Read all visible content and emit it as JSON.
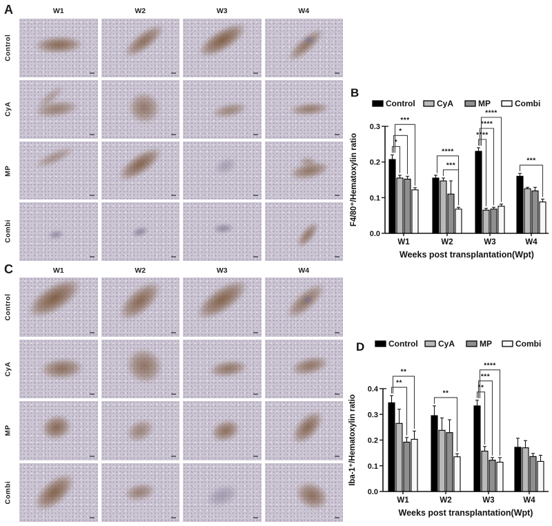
{
  "figure": {
    "background": "#ffffff"
  },
  "panels": [
    {
      "label": "A",
      "columns": [
        "W1",
        "W2",
        "W3",
        "W4"
      ],
      "rows": [
        "Control",
        "CyA",
        "MP",
        "Combi"
      ]
    },
    {
      "label": "C",
      "columns": [
        "W1",
        "W2",
        "W3",
        "W4"
      ],
      "rows": [
        "Control",
        "CyA",
        "MP",
        "Combi"
      ]
    }
  ],
  "legend": {
    "items": [
      {
        "label": "Control",
        "color": "#000000"
      },
      {
        "label": "CyA",
        "color": "#b9b9b9"
      },
      {
        "label": "MP",
        "color": "#8f8f8f"
      },
      {
        "label": "Combi",
        "color": "#f7f7f7"
      }
    ]
  },
  "chart_data": [
    {
      "type": "bar",
      "panel": "B",
      "title": "",
      "xlabel": "Weeks post transplantation(Wpt)",
      "ylabel": "F4/80⁺/Hematoxylin ratio",
      "categories": [
        "W1",
        "W2",
        "W3",
        "W4"
      ],
      "ylim": [
        0,
        0.3
      ],
      "yticks": [
        "0.0",
        "0.1",
        "0.2",
        "0.3"
      ],
      "grid": false,
      "legend_position": "top",
      "series": [
        {
          "name": "Control",
          "color": "#000000",
          "values": [
            0.207,
            0.155,
            0.23,
            0.16
          ],
          "errors": [
            0.013,
            0.008,
            0.01,
            0.008
          ]
        },
        {
          "name": "CyA",
          "color": "#b9b9b9",
          "values": [
            0.155,
            0.147,
            0.065,
            0.125
          ],
          "errors": [
            0.008,
            0.008,
            0.005,
            0.004
          ]
        },
        {
          "name": "MP",
          "color": "#8f8f8f",
          "values": [
            0.152,
            0.11,
            0.068,
            0.119
          ],
          "errors": [
            0.008,
            0.037,
            0.005,
            0.01
          ]
        },
        {
          "name": "Combi",
          "color": "#f7f7f7",
          "values": [
            0.122,
            0.068,
            0.076,
            0.088
          ],
          "errors": [
            0.006,
            0.005,
            0.006,
            0.008
          ]
        }
      ],
      "significance": [
        {
          "group": "W1",
          "from": "Control",
          "to": "CyA",
          "label": "*"
        },
        {
          "group": "W1",
          "from": "Control",
          "to": "MP",
          "label": "*"
        },
        {
          "group": "W1",
          "from": "Control",
          "to": "Combi",
          "label": "***"
        },
        {
          "group": "W2",
          "from": "CyA",
          "to": "Combi",
          "label": "***"
        },
        {
          "group": "W2",
          "from": "Control",
          "to": "Combi",
          "label": "****"
        },
        {
          "group": "W3",
          "from": "Control",
          "to": "CyA",
          "label": "****"
        },
        {
          "group": "W3",
          "from": "Control",
          "to": "MP",
          "label": "****"
        },
        {
          "group": "W3",
          "from": "Control",
          "to": "Combi",
          "label": "****"
        },
        {
          "group": "W4",
          "from": "Control",
          "to": "Combi",
          "label": "***"
        }
      ]
    },
    {
      "type": "bar",
      "panel": "D",
      "title": "",
      "xlabel": "Weeks post transplantation(Wpt)",
      "ylabel": "Iba-1⁺/Hematoxylin ratio",
      "categories": [
        "W1",
        "W2",
        "W3",
        "W4"
      ],
      "ylim": [
        0,
        0.4
      ],
      "yticks": [
        "0.0",
        "0.1",
        "0.2",
        "0.3",
        "0.4"
      ],
      "grid": false,
      "legend_position": "top",
      "series": [
        {
          "name": "Control",
          "color": "#000000",
          "values": [
            0.345,
            0.295,
            0.333,
            0.172
          ],
          "errors": [
            0.028,
            0.038,
            0.022,
            0.035
          ]
        },
        {
          "name": "CyA",
          "color": "#b9b9b9",
          "values": [
            0.265,
            0.238,
            0.157,
            0.17
          ],
          "errors": [
            0.055,
            0.048,
            0.018,
            0.028
          ]
        },
        {
          "name": "MP",
          "color": "#8f8f8f",
          "values": [
            0.192,
            0.229,
            0.122,
            0.136
          ],
          "errors": [
            0.018,
            0.05,
            0.01,
            0.012
          ]
        },
        {
          "name": "Combi",
          "color": "#f7f7f7",
          "values": [
            0.203,
            0.135,
            0.114,
            0.117
          ],
          "errors": [
            0.032,
            0.012,
            0.018,
            0.024
          ]
        }
      ],
      "significance": [
        {
          "group": "W1",
          "from": "Control",
          "to": "MP",
          "label": "**"
        },
        {
          "group": "W1",
          "from": "Control",
          "to": "Combi",
          "label": "**"
        },
        {
          "group": "W2",
          "from": "Control",
          "to": "Combi",
          "label": "**"
        },
        {
          "group": "W3",
          "from": "Control",
          "to": "CyA",
          "label": "**"
        },
        {
          "group": "W3",
          "from": "Control",
          "to": "MP",
          "label": "***"
        },
        {
          "group": "W3",
          "from": "Control",
          "to": "Combi",
          "label": "****"
        }
      ]
    }
  ]
}
